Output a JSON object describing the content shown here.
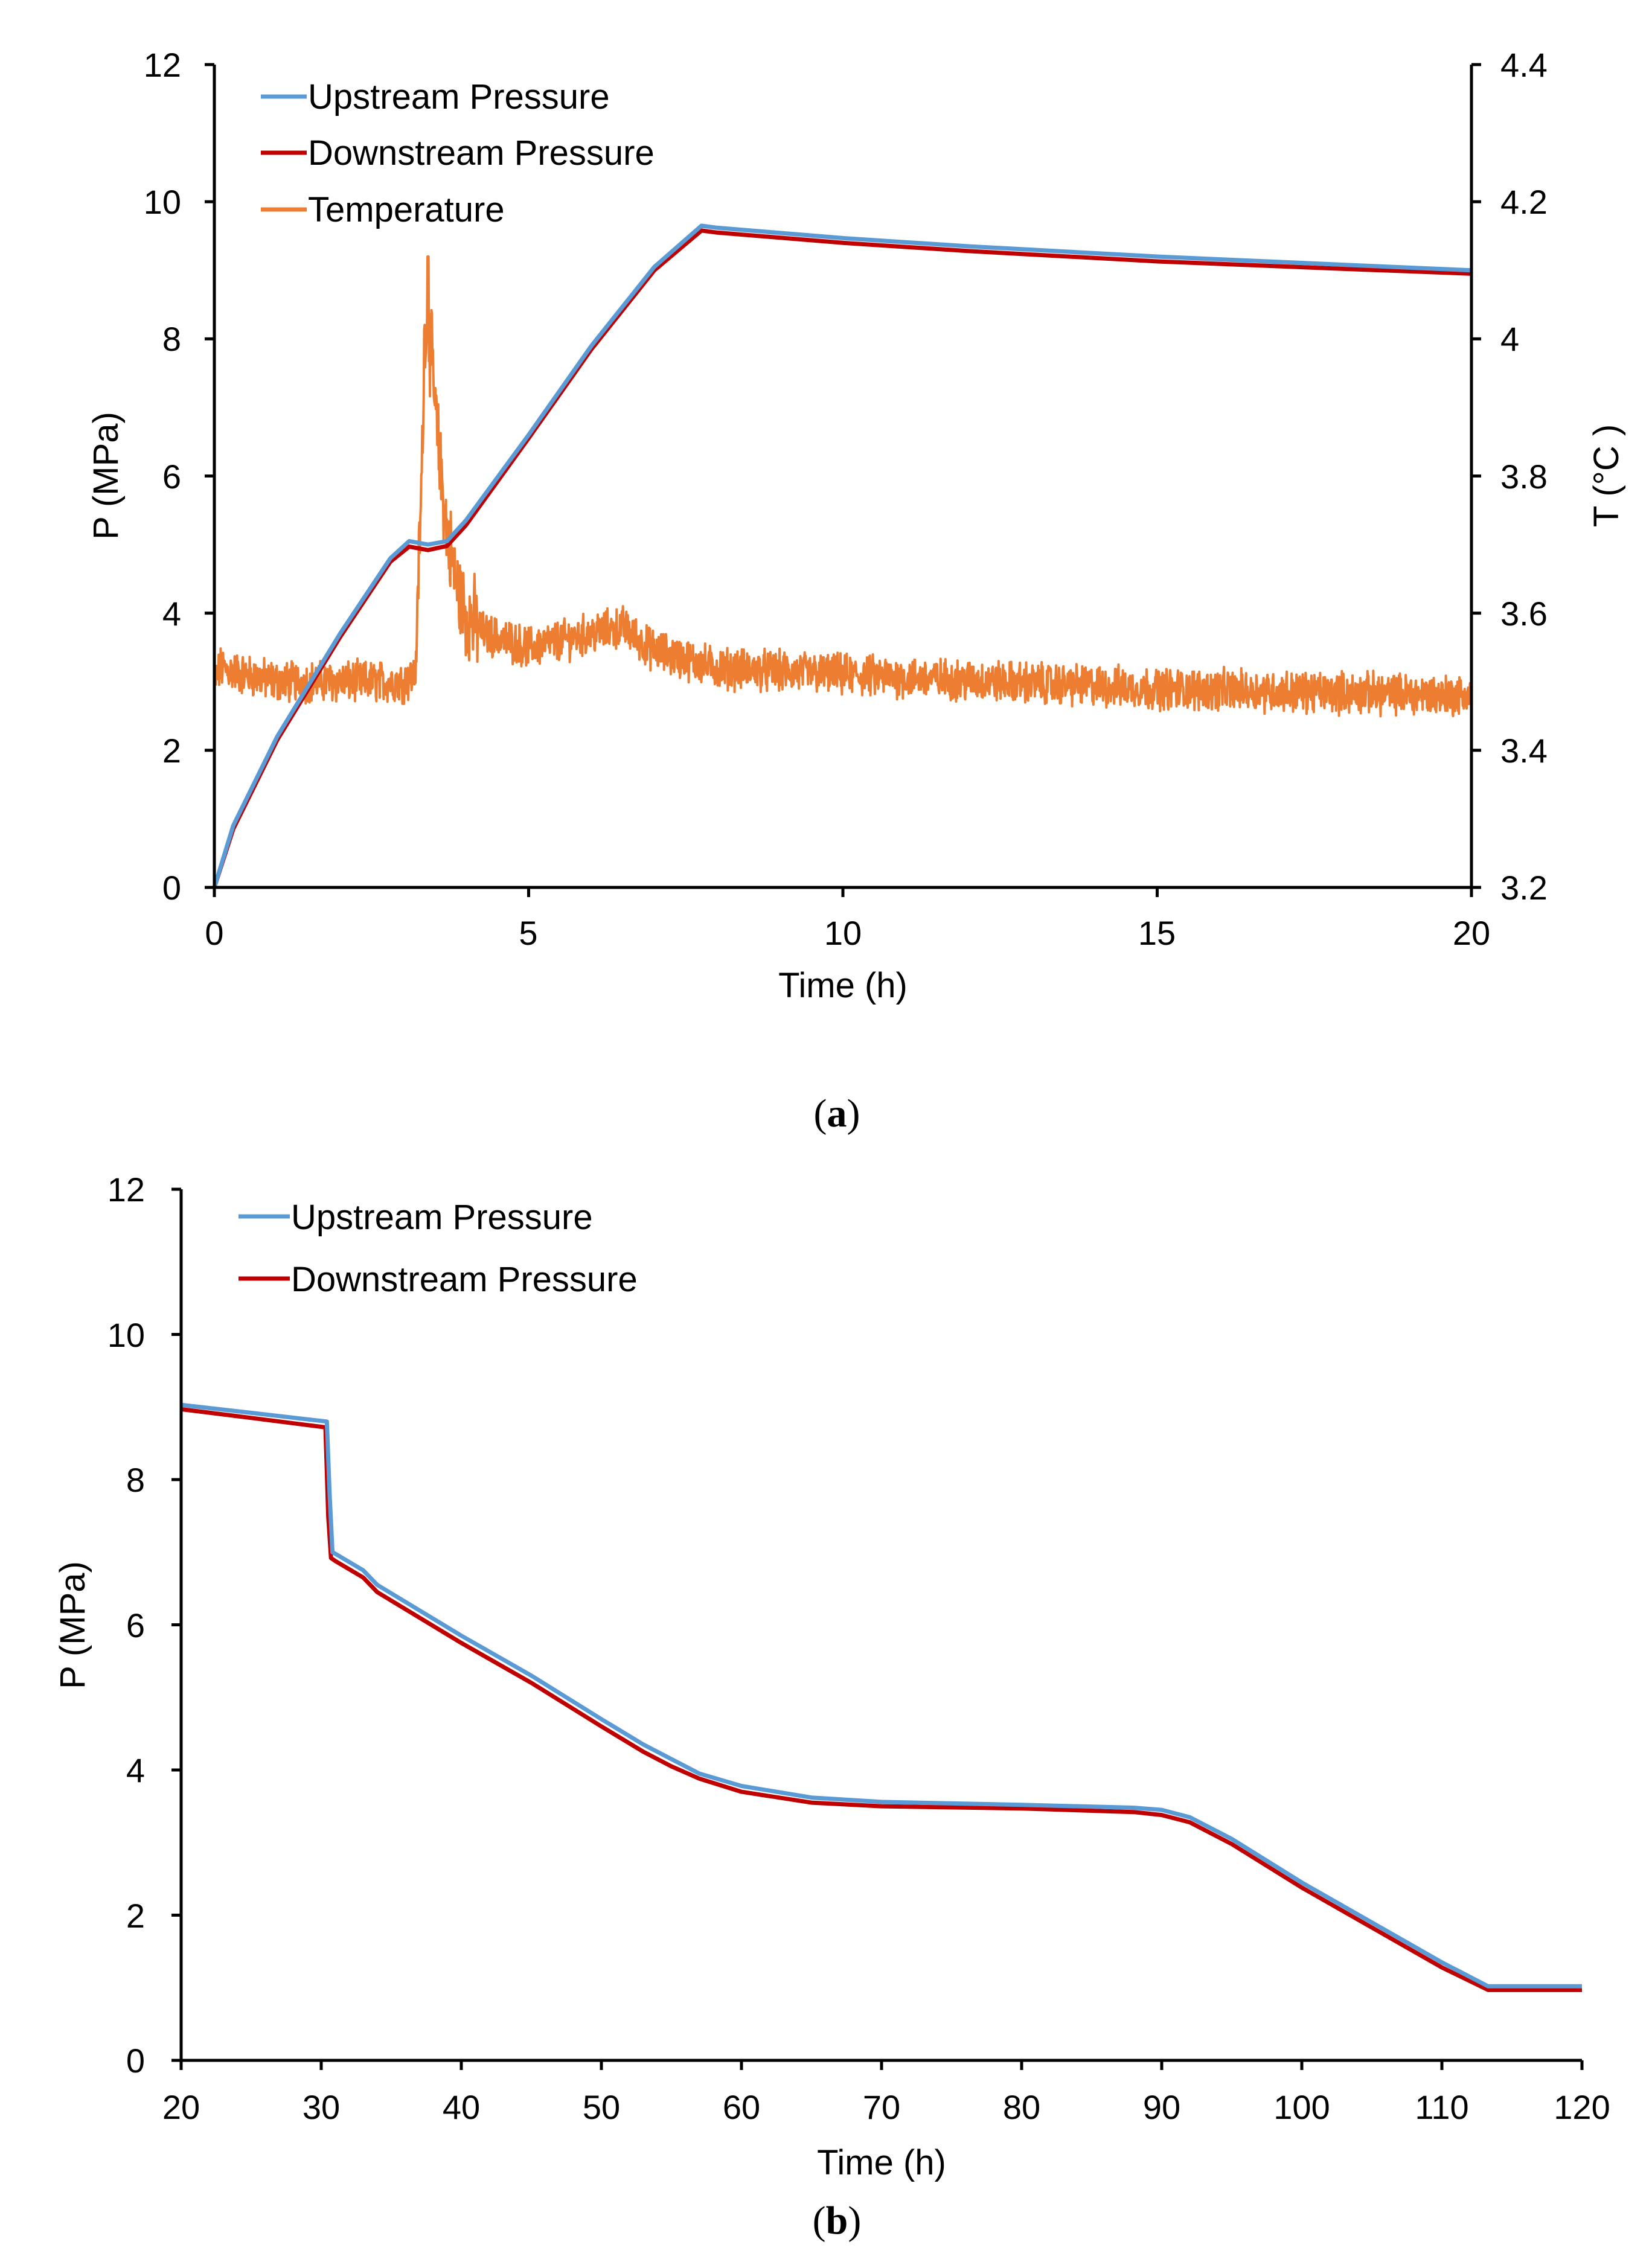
{
  "chart_data": [
    {
      "type": "line",
      "panel_label": "a",
      "caption_open": "(",
      "caption_close": ")",
      "xlabel": "Time (h)",
      "ylabel": "P (MPa)",
      "y2label": "T (°C )",
      "xlim": [
        0,
        20
      ],
      "ylim": [
        0,
        12
      ],
      "y2lim": [
        3.2,
        4.4
      ],
      "xticks": [
        "0",
        "5",
        "10",
        "15",
        "20"
      ],
      "yticks": [
        "0",
        "2",
        "4",
        "6",
        "8",
        "10",
        "12"
      ],
      "y2ticks": [
        "3.2",
        "3.4",
        "3.6",
        "3.8",
        "4",
        "4.2",
        "4.4"
      ],
      "legend_position": "top-left",
      "series": [
        {
          "name": "Upstream Pressure",
          "axis": "left",
          "color": "#5B9BD5",
          "x": [
            0,
            0.3,
            1,
            2,
            2.8,
            3.1,
            3.4,
            3.7,
            4,
            5,
            6,
            7,
            7.75,
            8,
            10,
            12,
            15,
            18,
            20
          ],
          "y": [
            0,
            0.9,
            2.2,
            3.7,
            4.8,
            5.05,
            5.0,
            5.05,
            5.35,
            6.6,
            7.9,
            9.05,
            9.65,
            9.62,
            9.47,
            9.35,
            9.2,
            9.08,
            9.0
          ]
        },
        {
          "name": "Downstream Pressure",
          "axis": "left",
          "color": "#C00000",
          "x": [
            0,
            0.3,
            1,
            2,
            2.8,
            3.1,
            3.4,
            3.7,
            4,
            5,
            6,
            7,
            7.75,
            8,
            10,
            12,
            15,
            18,
            20
          ],
          "y": [
            0,
            0.85,
            2.15,
            3.65,
            4.75,
            4.97,
            4.92,
            4.98,
            5.28,
            6.55,
            7.85,
            9.0,
            9.58,
            9.55,
            9.4,
            9.28,
            9.13,
            9.02,
            8.95
          ]
        },
        {
          "name": "Temperature",
          "axis": "right",
          "color": "#ED7D31",
          "baseline": {
            "x": [
              0,
              0.1,
              0.5,
              1,
              2,
              3,
              3.2,
              3.3,
              3.35,
              3.45,
              3.55,
              3.7,
              3.85,
              4.0,
              4.3,
              5,
              6,
              6.5,
              6.9,
              7.2,
              8,
              10,
              15,
              20
            ],
            "y": [
              3.5,
              3.52,
              3.51,
              3.5,
              3.5,
              3.5,
              3.51,
              3.8,
              4.03,
              3.98,
              3.85,
              3.72,
              3.64,
              3.6,
              3.57,
              3.55,
              3.57,
              3.58,
              3.55,
              3.54,
              3.52,
              3.51,
              3.49,
              3.48
            ]
          },
          "noise_amplitude": 0.025,
          "peak": [
            3.4,
            4.12
          ]
        }
      ]
    },
    {
      "type": "line",
      "panel_label": "b",
      "caption_open": "(",
      "caption_close": ")",
      "xlabel": "Time (h)",
      "ylabel": "P (MPa)",
      "xlim": [
        20,
        120
      ],
      "ylim": [
        0,
        12
      ],
      "xticks": [
        "20",
        "30",
        "40",
        "50",
        "60",
        "70",
        "80",
        "90",
        "100",
        "110",
        "120"
      ],
      "yticks": [
        "0",
        "2",
        "4",
        "6",
        "8",
        "10",
        "12"
      ],
      "legend_position": "top-left",
      "series": [
        {
          "name": "Upstream Pressure",
          "color": "#5B9BD5",
          "x": [
            20,
            25,
            30.4,
            30.6,
            30.8,
            31,
            33,
            34,
            40,
            45,
            50,
            53,
            55,
            57,
            60,
            65,
            70,
            80,
            88,
            90,
            92,
            95,
            100,
            110,
            113.3,
            120
          ],
          "y": [
            9.03,
            8.92,
            8.8,
            7.8,
            7.0,
            6.98,
            6.75,
            6.55,
            5.85,
            5.3,
            4.7,
            4.35,
            4.15,
            3.95,
            3.78,
            3.62,
            3.56,
            3.52,
            3.48,
            3.45,
            3.35,
            3.05,
            2.45,
            1.35,
            1.02,
            1.02
          ]
        },
        {
          "name": "Downstream Pressure",
          "color": "#C00000",
          "x": [
            20,
            25,
            30.3,
            30.5,
            30.7,
            31,
            33,
            34,
            40,
            45,
            50,
            53,
            55,
            57,
            60,
            65,
            70,
            80,
            88,
            90,
            92,
            95,
            100,
            110,
            113.3,
            120
          ],
          "y": [
            8.97,
            8.85,
            8.72,
            7.5,
            6.92,
            6.88,
            6.65,
            6.45,
            5.75,
            5.2,
            4.6,
            4.25,
            4.05,
            3.88,
            3.7,
            3.55,
            3.5,
            3.47,
            3.42,
            3.38,
            3.28,
            2.98,
            2.38,
            1.28,
            0.97,
            0.97
          ]
        }
      ]
    }
  ]
}
